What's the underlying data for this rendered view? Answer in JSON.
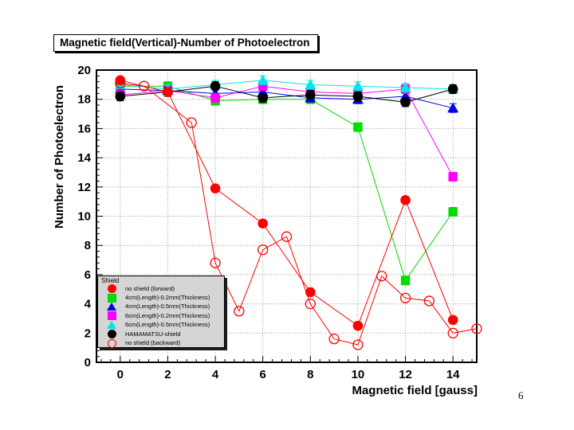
{
  "page": {
    "number": "6"
  },
  "chart_data": {
    "type": "line",
    "title": "Magnetic field(Vertical)-Number of Photoelectron",
    "xlabel": "Magnetic field [gauss]",
    "ylabel": "Number of Photoelectron",
    "xlim": [
      -1,
      15
    ],
    "ylim": [
      0,
      20
    ],
    "xticks": [
      0,
      2,
      4,
      6,
      8,
      10,
      12,
      14
    ],
    "yticks": [
      0,
      2,
      4,
      6,
      8,
      10,
      12,
      14,
      16,
      18,
      20
    ],
    "minor_tick_step": 0.4,
    "grid": "dotted-at-major-ticks",
    "grid_color": "#9a9a9a",
    "frame_color": "#000000",
    "legend_title": "Shield",
    "legend_position": "bottom-left",
    "draw_order": [
      1,
      2,
      3,
      4,
      5,
      0,
      6
    ],
    "series": [
      {
        "label": "no shield (forward)",
        "marker": "circle-filled",
        "color": "#ff0000",
        "error_bars": false,
        "x": [
          0,
          2,
          4,
          6,
          8,
          10,
          12,
          14
        ],
        "y": [
          19.3,
          18.5,
          11.9,
          9.5,
          4.8,
          2.5,
          11.1,
          2.9
        ]
      },
      {
        "label": "4cm(Length)-0.2mm(Thickness)",
        "marker": "square-filled",
        "color": "#00dd00",
        "error_bars": true,
        "x": [
          0,
          2,
          4,
          6,
          8,
          10,
          12,
          14
        ],
        "y": [
          18.9,
          18.9,
          17.9,
          18.0,
          18.0,
          16.1,
          5.6,
          10.3
        ]
      },
      {
        "label": "4cm(Length)-0.5mm(Thickness)",
        "marker": "triangle-filled",
        "color": "#0000ee",
        "error_bars": true,
        "x": [
          0,
          2,
          4,
          6,
          8,
          10,
          12,
          14
        ],
        "y": [
          18.7,
          18.6,
          18.4,
          18.5,
          18.1,
          18.0,
          18.2,
          17.4
        ]
      },
      {
        "label": "6cm(Length)-0.2mm(Thickness)",
        "marker": "square-filled",
        "color": "#ff00ff",
        "error_bars": true,
        "x": [
          0,
          2,
          4,
          6,
          8,
          10,
          12,
          14
        ],
        "y": [
          18.3,
          18.6,
          18.1,
          18.9,
          18.5,
          18.4,
          18.7,
          12.7
        ]
      },
      {
        "label": "6cm(Length)-0.5mm(Thickness)",
        "marker": "triangle-filled",
        "color": "#00e5e5",
        "error_bars": true,
        "x": [
          0,
          2,
          4,
          6,
          8,
          10,
          12,
          14
        ],
        "y": [
          19.0,
          18.7,
          19.0,
          19.3,
          19.0,
          18.9,
          18.8,
          18.7
        ]
      },
      {
        "label": "HAMAMATSU-shield",
        "marker": "circle-filled",
        "color": "#000000",
        "error_bars": true,
        "x": [
          0,
          2,
          4,
          6,
          8,
          10,
          12,
          14
        ],
        "y": [
          18.2,
          18.5,
          18.9,
          18.1,
          18.3,
          18.2,
          17.8,
          18.7
        ]
      },
      {
        "label": "no shield (backward)",
        "marker": "circle-open",
        "color": "#ff0000",
        "error_bars": false,
        "x": [
          0,
          1,
          3,
          4,
          5,
          6,
          7,
          8,
          9,
          10,
          11,
          12,
          13,
          14,
          15
        ],
        "y": [
          19.1,
          18.9,
          16.4,
          6.8,
          3.5,
          7.7,
          8.6,
          4.0,
          1.6,
          1.2,
          5.9,
          4.4,
          4.2,
          2.0,
          2.3
        ]
      }
    ]
  }
}
